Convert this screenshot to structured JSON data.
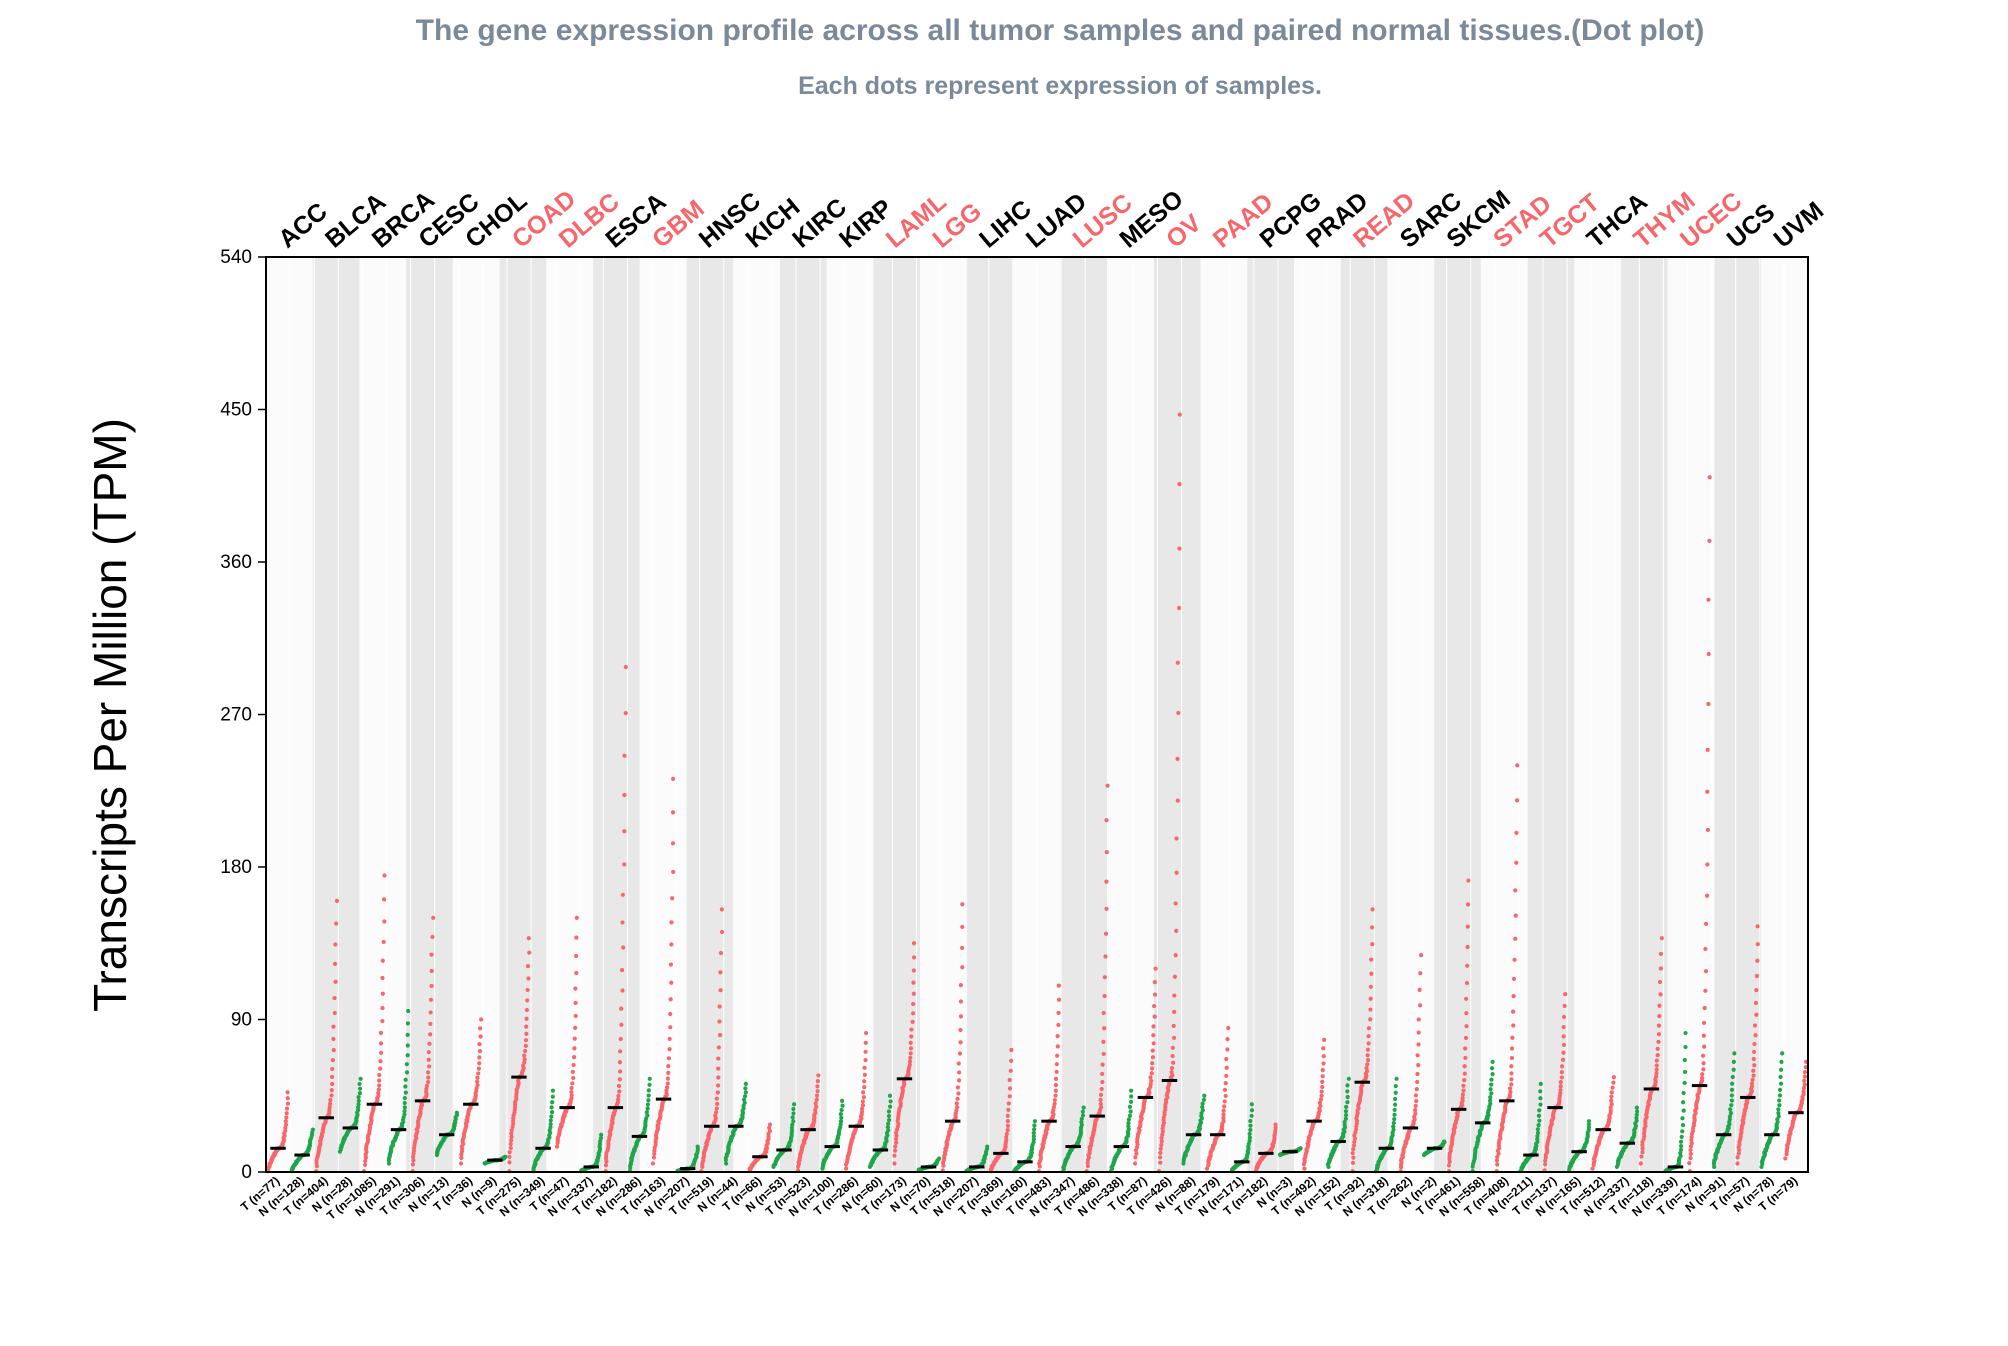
{
  "chart_data": {
    "type": "scatter",
    "title": "The gene expression profile across all tumor samples and paired normal tissues.(Dot plot)",
    "subtitle": "Each dots represent expression of samples.",
    "ylabel": "Transcripts Per Million (TPM)",
    "ylim": [
      0,
      540
    ],
    "yticks": [
      0,
      90,
      180,
      270,
      360,
      450,
      540
    ],
    "colors": {
      "tumor": "#f8666b",
      "normal": "#1ea64a",
      "highlight_label": "#f8666b",
      "normal_label": "#000000",
      "median": "#000000"
    },
    "cancers": [
      {
        "name": "ACC",
        "highlight": false
      },
      {
        "name": "BLCA",
        "highlight": false
      },
      {
        "name": "BRCA",
        "highlight": false
      },
      {
        "name": "CESC",
        "highlight": false
      },
      {
        "name": "CHOL",
        "highlight": false
      },
      {
        "name": "COAD",
        "highlight": true
      },
      {
        "name": "DLBC",
        "highlight": true
      },
      {
        "name": "ESCA",
        "highlight": false
      },
      {
        "name": "GBM",
        "highlight": true
      },
      {
        "name": "HNSC",
        "highlight": false
      },
      {
        "name": "KICH",
        "highlight": false
      },
      {
        "name": "KIRC",
        "highlight": false
      },
      {
        "name": "KIRP",
        "highlight": false
      },
      {
        "name": "LAML",
        "highlight": true
      },
      {
        "name": "LGG",
        "highlight": true
      },
      {
        "name": "LIHC",
        "highlight": false
      },
      {
        "name": "LUAD",
        "highlight": false
      },
      {
        "name": "LUSC",
        "highlight": true
      },
      {
        "name": "MESO",
        "highlight": false
      },
      {
        "name": "OV",
        "highlight": true
      },
      {
        "name": "PAAD",
        "highlight": true
      },
      {
        "name": "PCPG",
        "highlight": false
      },
      {
        "name": "PRAD",
        "highlight": false
      },
      {
        "name": "READ",
        "highlight": true
      },
      {
        "name": "SARC",
        "highlight": false
      },
      {
        "name": "SKCM",
        "highlight": false
      },
      {
        "name": "STAD",
        "highlight": true
      },
      {
        "name": "TGCT",
        "highlight": true
      },
      {
        "name": "THCA",
        "highlight": false
      },
      {
        "name": "THYM",
        "highlight": true
      },
      {
        "name": "UCEC",
        "highlight": true
      },
      {
        "name": "UCS",
        "highlight": false
      },
      {
        "name": "UVM",
        "highlight": false
      }
    ],
    "groups": [
      {
        "label": "T (n=77)",
        "type": "T",
        "median": 14,
        "min": 0.5,
        "max": 47
      },
      {
        "label": "N (n=128)",
        "type": "N",
        "median": 10,
        "min": 0.5,
        "max": 25
      },
      {
        "label": "T (n=404)",
        "type": "T",
        "median": 32,
        "min": 0.5,
        "max": 160
      },
      {
        "label": "N (n=28)",
        "type": "N",
        "median": 26,
        "min": 12,
        "max": 55
      },
      {
        "label": "T (n=1085)",
        "type": "T",
        "median": 40,
        "min": 0.5,
        "max": 175
      },
      {
        "label": "N (n=291)",
        "type": "N",
        "median": 25,
        "min": 5,
        "max": 95
      },
      {
        "label": "T (n=306)",
        "type": "T",
        "median": 42,
        "min": 0.5,
        "max": 150
      },
      {
        "label": "N (n=13)",
        "type": "N",
        "median": 22,
        "min": 10,
        "max": 35
      },
      {
        "label": "T (n=36)",
        "type": "T",
        "median": 40,
        "min": 5,
        "max": 90
      },
      {
        "label": "N (n=9)",
        "type": "N",
        "median": 7,
        "min": 5,
        "max": 9
      },
      {
        "label": "T (n=275)",
        "type": "T",
        "median": 56,
        "min": 0.5,
        "max": 138
      },
      {
        "label": "N (n=349)",
        "type": "N",
        "median": 14,
        "min": 0.5,
        "max": 48
      },
      {
        "label": "T (n=47)",
        "type": "T",
        "median": 38,
        "min": 15,
        "max": 150
      },
      {
        "label": "N (n=337)",
        "type": "N",
        "median": 3,
        "min": 0.5,
        "max": 22
      },
      {
        "label": "T (n=182)",
        "type": "T",
        "median": 38,
        "min": 0.5,
        "max": 298
      },
      {
        "label": "N (n=286)",
        "type": "N",
        "median": 21,
        "min": 0.5,
        "max": 55
      },
      {
        "label": "T (n=163)",
        "type": "T",
        "median": 43,
        "min": 5,
        "max": 232
      },
      {
        "label": "N (n=207)",
        "type": "N",
        "median": 2,
        "min": 0.5,
        "max": 15
      },
      {
        "label": "T (n=519)",
        "type": "T",
        "median": 27,
        "min": 0.5,
        "max": 155
      },
      {
        "label": "N (n=44)",
        "type": "N",
        "median": 27,
        "min": 5,
        "max": 52
      },
      {
        "label": "T (n=66)",
        "type": "T",
        "median": 9,
        "min": 1,
        "max": 28
      },
      {
        "label": "N (n=53)",
        "type": "N",
        "median": 13,
        "min": 3,
        "max": 40
      },
      {
        "label": "T (n=523)",
        "type": "T",
        "median": 25,
        "min": 1,
        "max": 57
      },
      {
        "label": "N (n=100)",
        "type": "N",
        "median": 15,
        "min": 2,
        "max": 42
      },
      {
        "label": "T (n=286)",
        "type": "T",
        "median": 27,
        "min": 2,
        "max": 82
      },
      {
        "label": "N (n=60)",
        "type": "N",
        "median": 13,
        "min": 3,
        "max": 45
      },
      {
        "label": "T (n=173)",
        "type": "T",
        "median": 55,
        "min": 5,
        "max": 135
      },
      {
        "label": "N (n=70)",
        "type": "N",
        "median": 3,
        "min": 1,
        "max": 8
      },
      {
        "label": "T (n=518)",
        "type": "T",
        "median": 30,
        "min": 1,
        "max": 158
      },
      {
        "label": "N (n=207)",
        "type": "N",
        "median": 3,
        "min": 0.5,
        "max": 15
      },
      {
        "label": "T (n=369)",
        "type": "T",
        "median": 11,
        "min": 0.5,
        "max": 72
      },
      {
        "label": "N (n=160)",
        "type": "N",
        "median": 6,
        "min": 0.5,
        "max": 30
      },
      {
        "label": "T (n=483)",
        "type": "T",
        "median": 30,
        "min": 0.5,
        "max": 110
      },
      {
        "label": "N (n=347)",
        "type": "N",
        "median": 15,
        "min": 0.5,
        "max": 38
      },
      {
        "label": "T (n=486)",
        "type": "T",
        "median": 33,
        "min": 0.5,
        "max": 228
      },
      {
        "label": "N (n=338)",
        "type": "N",
        "median": 15,
        "min": 0.5,
        "max": 48
      },
      {
        "label": "T (n=87)",
        "type": "T",
        "median": 44,
        "min": 5,
        "max": 120
      },
      {
        "label": "T (n=426)",
        "type": "T",
        "median": 54,
        "min": 0.5,
        "max": 447
      },
      {
        "label": "N (n=88)",
        "type": "N",
        "median": 22,
        "min": 5,
        "max": 45
      },
      {
        "label": "T (n=179)",
        "type": "T",
        "median": 22,
        "min": 2,
        "max": 85
      },
      {
        "label": "N (n=171)",
        "type": "N",
        "median": 6,
        "min": 0.5,
        "max": 40
      },
      {
        "label": "T (n=182)",
        "type": "T",
        "median": 11,
        "min": 0.5,
        "max": 28
      },
      {
        "label": "N (n=3)",
        "type": "N",
        "median": 12,
        "min": 10,
        "max": 14
      },
      {
        "label": "T (n=492)",
        "type": "T",
        "median": 30,
        "min": 2,
        "max": 78
      },
      {
        "label": "N (n=152)",
        "type": "N",
        "median": 18,
        "min": 3,
        "max": 55
      },
      {
        "label": "T (n=92)",
        "type": "T",
        "median": 53,
        "min": 0.5,
        "max": 155
      },
      {
        "label": "N (n=318)",
        "type": "N",
        "median": 14,
        "min": 0.5,
        "max": 55
      },
      {
        "label": "T (n=262)",
        "type": "T",
        "median": 26,
        "min": 0.5,
        "max": 128
      },
      {
        "label": "N (n=2)",
        "type": "N",
        "median": 14,
        "min": 10,
        "max": 18
      },
      {
        "label": "T (n=461)",
        "type": "T",
        "median": 37,
        "min": 0.5,
        "max": 172
      },
      {
        "label": "N (n=558)",
        "type": "N",
        "median": 29,
        "min": 0.5,
        "max": 65
      },
      {
        "label": "T (n=408)",
        "type": "T",
        "median": 42,
        "min": 0.5,
        "max": 240
      },
      {
        "label": "N (n=211)",
        "type": "N",
        "median": 10,
        "min": 0.5,
        "max": 52
      },
      {
        "label": "T (n=137)",
        "type": "T",
        "median": 38,
        "min": 1,
        "max": 105
      },
      {
        "label": "N (n=165)",
        "type": "N",
        "median": 12,
        "min": 1,
        "max": 30
      },
      {
        "label": "T (n=512)",
        "type": "T",
        "median": 25,
        "min": 2,
        "max": 56
      },
      {
        "label": "N (n=337)",
        "type": "N",
        "median": 17,
        "min": 3,
        "max": 38
      },
      {
        "label": "T (n=118)",
        "type": "T",
        "median": 49,
        "min": 5,
        "max": 138
      },
      {
        "label": "N (n=339)",
        "type": "N",
        "median": 3,
        "min": 0.5,
        "max": 82
      },
      {
        "label": "T (n=174)",
        "type": "T",
        "median": 51,
        "min": 0.5,
        "max": 410
      },
      {
        "label": "N (n=91)",
        "type": "N",
        "median": 22,
        "min": 3,
        "max": 70
      },
      {
        "label": "T (n=57)",
        "type": "T",
        "median": 44,
        "min": 5,
        "max": 145
      },
      {
        "label": "N (n=78)",
        "type": "N",
        "median": 22,
        "min": 3,
        "max": 70
      },
      {
        "label": "T (n=79)",
        "type": "T",
        "median": 35,
        "min": 8,
        "max": 65
      }
    ]
  }
}
